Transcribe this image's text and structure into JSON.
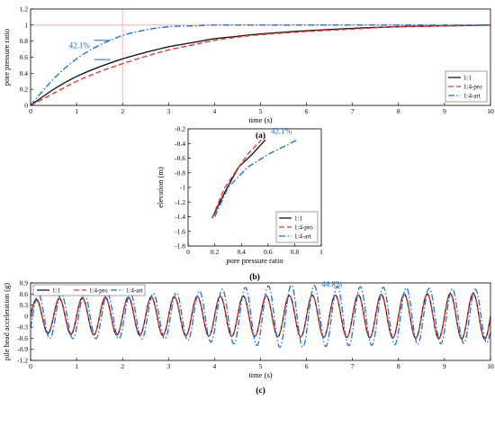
{
  "figure": {
    "colors": {
      "s11": "#1a1a1a",
      "s14pro": "#e53935",
      "s14art": "#1f6fd6",
      "ref": "#f4a6a6"
    }
  },
  "chart_data": [
    {
      "id": "a",
      "type": "line",
      "panel_label": "(a)",
      "xlabel": "time (s)",
      "ylabel": "pore pressure ratio",
      "xlim": [
        0,
        10
      ],
      "ylim": [
        0,
        1.2
      ],
      "xticks": [
        0,
        1,
        2,
        3,
        4,
        5,
        6,
        7,
        8,
        9,
        10
      ],
      "yticks": [
        0.0,
        0.2,
        0.4,
        0.6,
        0.8,
        1.0,
        1.2
      ],
      "legend": "bottom-right",
      "reference_lines": {
        "x": 2,
        "y": 1.0
      },
      "annotation": {
        "text": "42.1%",
        "x": 1.5,
        "y_top": 0.81,
        "y_bottom": 0.57
      },
      "series": [
        {
          "name": "1:1",
          "style": "solid",
          "color": "#1a1a1a",
          "x": [
            0,
            0.5,
            1,
            1.5,
            2,
            2.5,
            3,
            3.5,
            4,
            4.5,
            5,
            6,
            7,
            8,
            9,
            10
          ],
          "y": [
            0.0,
            0.2,
            0.36,
            0.48,
            0.58,
            0.66,
            0.73,
            0.78,
            0.83,
            0.86,
            0.89,
            0.93,
            0.96,
            0.98,
            0.99,
            1.0
          ]
        },
        {
          "name": "1:4-pro",
          "style": "dashed",
          "color": "#e53935",
          "x": [
            0,
            0.5,
            1,
            1.5,
            2,
            2.5,
            3,
            3.5,
            4,
            4.5,
            5,
            6,
            7,
            8,
            9,
            10
          ],
          "y": [
            0.0,
            0.15,
            0.3,
            0.42,
            0.52,
            0.61,
            0.69,
            0.75,
            0.81,
            0.85,
            0.88,
            0.92,
            0.95,
            0.98,
            0.99,
            1.0
          ]
        },
        {
          "name": "1:4-art",
          "style": "dashdot",
          "color": "#1f6fd6",
          "x": [
            0,
            0.5,
            1,
            1.5,
            2,
            2.5,
            3,
            3.5,
            4,
            5,
            6,
            7,
            8,
            9,
            10
          ],
          "y": [
            0.0,
            0.33,
            0.58,
            0.75,
            0.87,
            0.94,
            0.98,
            0.99,
            1.0,
            1.0,
            1.0,
            1.0,
            1.0,
            1.0,
            1.0
          ]
        }
      ]
    },
    {
      "id": "b",
      "type": "line",
      "panel_label": "(b)",
      "xlabel": "pore pressure ratio",
      "ylabel": "elevation (m)",
      "xlim": [
        0,
        1.0
      ],
      "ylim": [
        -1.8,
        -0.2
      ],
      "xticks": [
        0.0,
        0.2,
        0.4,
        0.6,
        0.8,
        1.0
      ],
      "yticks": [
        -0.2,
        -0.4,
        -0.6,
        -0.8,
        -1.0,
        -1.2,
        -1.4,
        -1.6,
        -1.8
      ],
      "legend": "bottom-right",
      "annotation": {
        "text": "42.1%",
        "x": 0.7,
        "y": -0.27
      },
      "series": [
        {
          "name": "1:1",
          "style": "solid",
          "color": "#1a1a1a",
          "x": [
            0.18,
            0.28,
            0.38,
            0.48,
            0.58
          ],
          "y": [
            -1.42,
            -1.05,
            -0.72,
            -0.55,
            -0.35
          ]
        },
        {
          "name": "1:4-pro",
          "style": "dashed",
          "color": "#e53935",
          "x": [
            0.18,
            0.27,
            0.38,
            0.46,
            0.55
          ],
          "y": [
            -1.42,
            -1.02,
            -0.72,
            -0.52,
            -0.35
          ]
        },
        {
          "name": "1:4-art",
          "style": "dashdot",
          "color": "#1f6fd6",
          "x": [
            0.2,
            0.3,
            0.45,
            0.6,
            0.82
          ],
          "y": [
            -1.4,
            -1.0,
            -0.72,
            -0.55,
            -0.35
          ]
        }
      ]
    },
    {
      "id": "c",
      "type": "line",
      "panel_label": "(c)",
      "xlabel": "time (s)",
      "ylabel": "pile head acceleration (g)",
      "xlim": [
        0,
        10
      ],
      "ylim": [
        -1.2,
        0.9
      ],
      "xticks": [
        0,
        1,
        2,
        3,
        4,
        5,
        6,
        7,
        8,
        9,
        10
      ],
      "yticks": [
        0.9,
        0.6,
        0.3,
        0.0,
        -0.3,
        -0.6,
        -0.9,
        -1.2
      ],
      "legend": "top-left",
      "annotation": {
        "text": "44.8%",
        "x": 6.55,
        "y": 0.79
      },
      "signal": {
        "frequency_hz": 2,
        "phase_s": 0.125,
        "duration_s": 10
      },
      "series": [
        {
          "name": "1:1",
          "style": "solid",
          "color": "#1a1a1a",
          "amplitude_t": [
            0,
            1,
            5,
            10
          ],
          "amplitude_g": [
            0.45,
            0.5,
            0.55,
            0.62
          ]
        },
        {
          "name": "1:4-pro",
          "style": "dashed",
          "color": "#e53935",
          "amplitude_t": [
            0,
            1,
            5,
            10
          ],
          "amplitude_g": [
            0.42,
            0.48,
            0.55,
            0.6
          ]
        },
        {
          "name": "1:4-art",
          "style": "dashdot",
          "color": "#1f6fd6",
          "amplitude_t": [
            0,
            3,
            5.5,
            7,
            10
          ],
          "amplitude_g": [
            0.6,
            0.62,
            0.85,
            0.8,
            0.72
          ]
        }
      ]
    }
  ]
}
